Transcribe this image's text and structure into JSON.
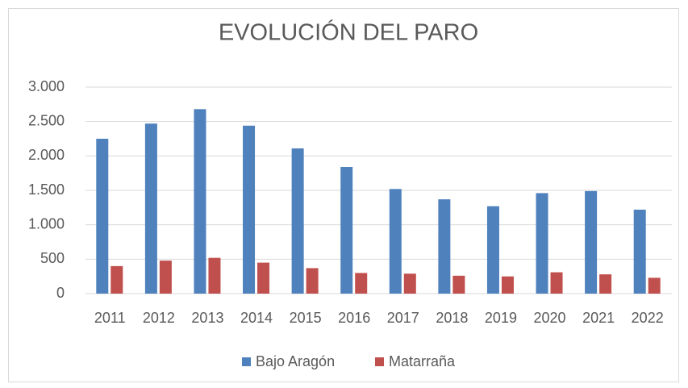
{
  "chart_data": {
    "type": "bar",
    "title": "EVOLUCIÓN DEL PARO",
    "categories": [
      "2011",
      "2012",
      "2013",
      "2014",
      "2015",
      "2016",
      "2017",
      "2018",
      "2019",
      "2020",
      "2021",
      "2022"
    ],
    "series": [
      {
        "name": "Bajo Aragón",
        "color": "#4f81bd",
        "values": [
          2250,
          2470,
          2680,
          2440,
          2110,
          1840,
          1520,
          1370,
          1270,
          1460,
          1490,
          1220
        ]
      },
      {
        "name": "Matarraña",
        "color": "#c0504d",
        "values": [
          400,
          480,
          520,
          450,
          370,
          300,
          290,
          260,
          250,
          310,
          280,
          230
        ]
      }
    ],
    "ylim": [
      0,
      3000
    ],
    "yticks": [
      0,
      500,
      {
        "value": 1000,
        "label": "1.000"
      },
      {
        "value": 1500,
        "label": "1.500"
      },
      {
        "value": 2000,
        "label": "2.000"
      },
      {
        "value": 2500,
        "label": "2.500"
      },
      {
        "value": 3000,
        "label": "3.000"
      }
    ],
    "grid": true,
    "legend": "bottom"
  }
}
